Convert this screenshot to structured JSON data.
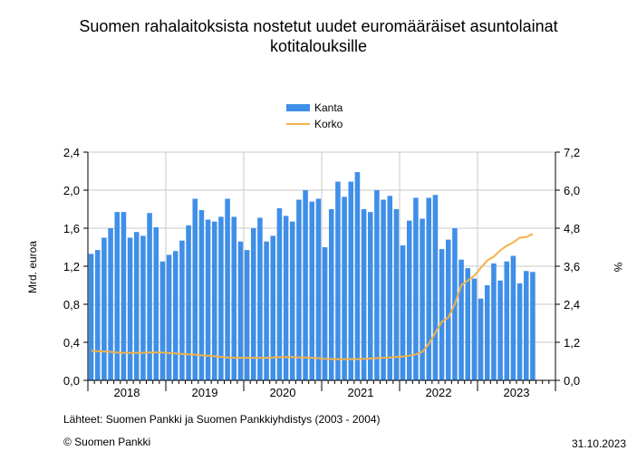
{
  "page": {
    "source_note": "Lähteet: Suomen Pankki ja Suomen Pankkiyhdistys (2003 - 2004)",
    "copyright": "© Suomen Pankki",
    "date": "31.10.2023"
  },
  "colors": {
    "bars": "#3f8fe8",
    "line": "#f2b24a",
    "axis": "#000000"
  },
  "chart_data": {
    "type": "bar",
    "title_lines": [
      "Suomen rahalaitoksista nostetut uudet euromääräiset asuntolainat",
      "kotitalouksille"
    ],
    "ylabel": "Mrd. euroa",
    "ylabel_right": "%",
    "ylim": [
      0,
      2.4
    ],
    "ylim_right": [
      0,
      7.2
    ],
    "yticks": [
      "0,0",
      "0,4",
      "0,8",
      "1,2",
      "1,6",
      "2,0",
      "2,4"
    ],
    "yticks_right": [
      "0,0",
      "1,2",
      "2,4",
      "3,6",
      "4,8",
      "6,0",
      "7,2"
    ],
    "year_labels": [
      "2018",
      "2019",
      "2020",
      "2021",
      "2022",
      "2023"
    ],
    "grid": true,
    "legend_placement": "top-center",
    "series": [
      {
        "name": "Kanta",
        "kind": "bar",
        "values": [
          1.33,
          1.37,
          1.5,
          1.6,
          1.77,
          1.77,
          1.5,
          1.56,
          1.52,
          1.76,
          1.61,
          1.25,
          1.32,
          1.36,
          1.47,
          1.63,
          1.91,
          1.79,
          1.69,
          1.67,
          1.72,
          1.91,
          1.72,
          1.46,
          1.37,
          1.6,
          1.71,
          1.46,
          1.52,
          1.81,
          1.73,
          1.67,
          1.9,
          2.0,
          1.88,
          1.91,
          1.4,
          1.8,
          2.09,
          1.93,
          2.09,
          2.19,
          1.8,
          1.77,
          2.0,
          1.9,
          1.94,
          1.8,
          1.42,
          1.68,
          1.92,
          1.7,
          1.92,
          1.95,
          1.38,
          1.48,
          1.6,
          1.27,
          1.18,
          1.07,
          0.86,
          1.0,
          1.23,
          1.05,
          1.25,
          1.31,
          1.02,
          1.15,
          1.14
        ]
      },
      {
        "name": "Korko",
        "kind": "line",
        "axis": "right",
        "values": [
          0.93,
          0.92,
          0.91,
          0.9,
          0.88,
          0.87,
          0.87,
          0.87,
          0.87,
          0.88,
          0.88,
          0.88,
          0.86,
          0.85,
          0.83,
          0.82,
          0.81,
          0.79,
          0.78,
          0.76,
          0.74,
          0.72,
          0.71,
          0.71,
          0.71,
          0.71,
          0.71,
          0.71,
          0.72,
          0.73,
          0.73,
          0.73,
          0.72,
          0.72,
          0.71,
          0.7,
          0.68,
          0.67,
          0.67,
          0.67,
          0.67,
          0.67,
          0.68,
          0.69,
          0.7,
          0.71,
          0.72,
          0.74,
          0.75,
          0.78,
          0.82,
          0.9,
          1.15,
          1.5,
          1.85,
          1.98,
          2.4,
          3.0,
          3.15,
          3.3,
          3.55,
          3.78,
          3.9,
          4.1,
          4.25,
          4.35,
          4.5,
          4.52,
          4.62
        ]
      }
    ]
  }
}
